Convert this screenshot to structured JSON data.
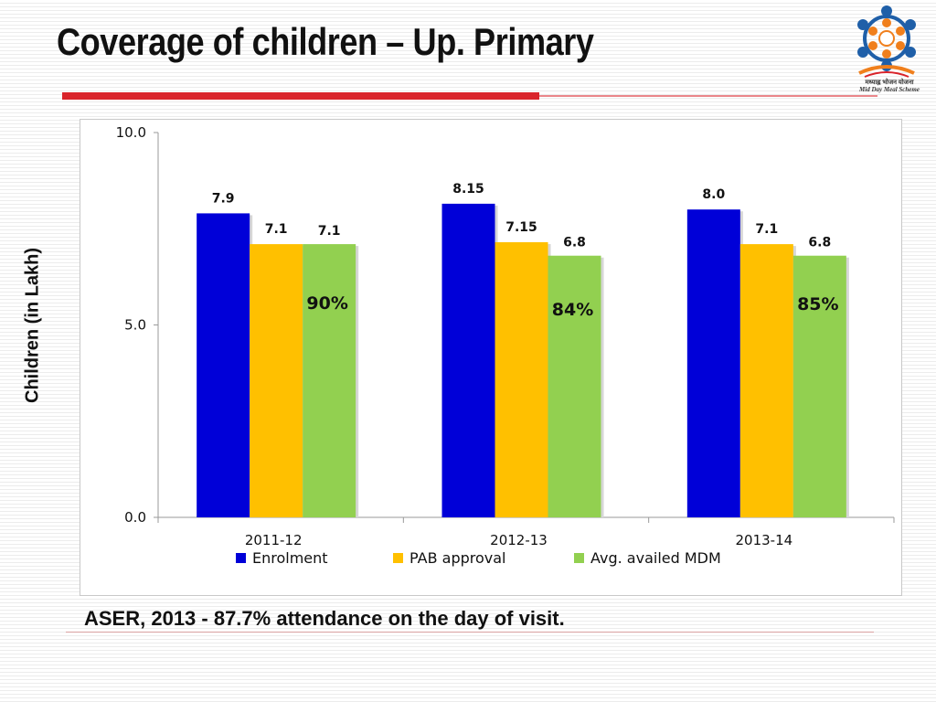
{
  "slide": {
    "title": "Coverage of children – Up. Primary",
    "footnote": "ASER, 2013 -  87.7% attendance on the day of visit.",
    "logo": {
      "icon": "mid-day-meal-scheme-logo",
      "text_hindi": "मध्याह्न भोजन योजना",
      "text_english": "Mid Day Meal Scheme"
    },
    "colors": {
      "accent_red": "#d9232a"
    }
  },
  "chart_data": {
    "type": "bar",
    "categories": [
      "2011-12",
      "2012-13",
      "2013-14"
    ],
    "series": [
      {
        "name": "Enrolment",
        "color": "#0000d8",
        "values": [
          7.9,
          8.15,
          8.0
        ],
        "labels": [
          "7.9",
          "8.15",
          "8.0"
        ]
      },
      {
        "name": "PAB approval",
        "color": "#ffc000",
        "values": [
          7.1,
          7.15,
          7.1
        ],
        "labels": [
          "7.1",
          "7.15",
          "7.1"
        ]
      },
      {
        "name": "Avg. availed MDM",
        "color": "#92d050",
        "values": [
          7.1,
          6.8,
          6.8
        ],
        "labels": [
          "7.1",
          "6.8",
          "6.8"
        ]
      }
    ],
    "annotations": [
      "90%",
      "84%",
      "85%"
    ],
    "ylabel": "Children (in Lakh)",
    "xlabel": "",
    "ylim": [
      0,
      10
    ],
    "yticks": [
      "0.0",
      "5.0",
      "10.0"
    ],
    "grid": false,
    "legend": "bottom"
  }
}
